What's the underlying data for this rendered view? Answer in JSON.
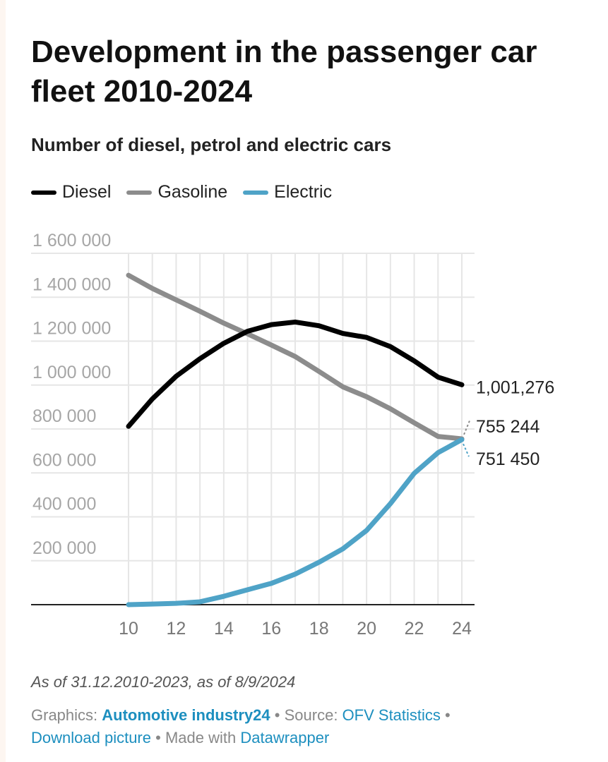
{
  "title": "Development in the passenger car fleet 2010-2024",
  "subtitle": "Number of diesel, petrol and electric cars",
  "legend": [
    {
      "name": "Diesel",
      "color": "#000000"
    },
    {
      "name": "Gasoline",
      "color": "#8c8c8c"
    },
    {
      "name": "Electric",
      "color": "#4fa3c7"
    }
  ],
  "chart_data": {
    "type": "line",
    "title": "Development in the passenger car fleet 2010-2024",
    "subtitle": "Number of diesel, petrol and electric cars",
    "xlabel": "",
    "ylabel": "",
    "x": [
      10,
      11,
      12,
      13,
      14,
      15,
      16,
      17,
      18,
      19,
      20,
      21,
      22,
      23,
      24
    ],
    "x_tick_labels": [
      "10",
      "12",
      "14",
      "16",
      "18",
      "20",
      "22",
      "24"
    ],
    "x_ticks": [
      10,
      12,
      14,
      16,
      18,
      20,
      22,
      24
    ],
    "y_ticks": [
      200000,
      400000,
      600000,
      800000,
      1000000,
      1200000,
      1400000,
      1600000
    ],
    "y_tick_labels": [
      "200 000",
      "400 000",
      "600 000",
      "800 000",
      "1 000 000",
      "1 200 000",
      "1 400 000",
      "1 600 000"
    ],
    "ylim": [
      0,
      1600000
    ],
    "xlim": [
      10,
      24
    ],
    "grid": true,
    "legend_position": "top-left",
    "series": [
      {
        "name": "Diesel",
        "color": "#000000",
        "values": [
          812000,
          937000,
          1040000,
          1120000,
          1190000,
          1245000,
          1275000,
          1287000,
          1270000,
          1235000,
          1217000,
          1175000,
          1110000,
          1036000,
          1001276
        ],
        "end_label": "1,001,276"
      },
      {
        "name": "Gasoline",
        "color": "#8c8c8c",
        "values": [
          1500000,
          1440000,
          1388000,
          1336000,
          1282000,
          1233000,
          1182000,
          1130000,
          1062000,
          992000,
          947000,
          892000,
          828000,
          766000,
          755244
        ],
        "end_label": "755 244"
      },
      {
        "name": "Electric",
        "color": "#4fa3c7",
        "values": [
          0,
          3000,
          6000,
          13000,
          38000,
          68000,
          97000,
          139000,
          193000,
          254000,
          338000,
          460000,
          598000,
          692000,
          751450
        ],
        "end_label": "751 450"
      }
    ]
  },
  "note": "As of 31.12.2010-2023, as of 8/9/2024",
  "footer": {
    "graphics_label": "Graphics:",
    "graphics_link": "Automotive industry24",
    "source_label": "Source:",
    "source_link": "OFV Statistics",
    "download_link": "Download picture",
    "made_with_label": "Made with",
    "made_with_link": "Datawrapper",
    "sep": "•"
  }
}
